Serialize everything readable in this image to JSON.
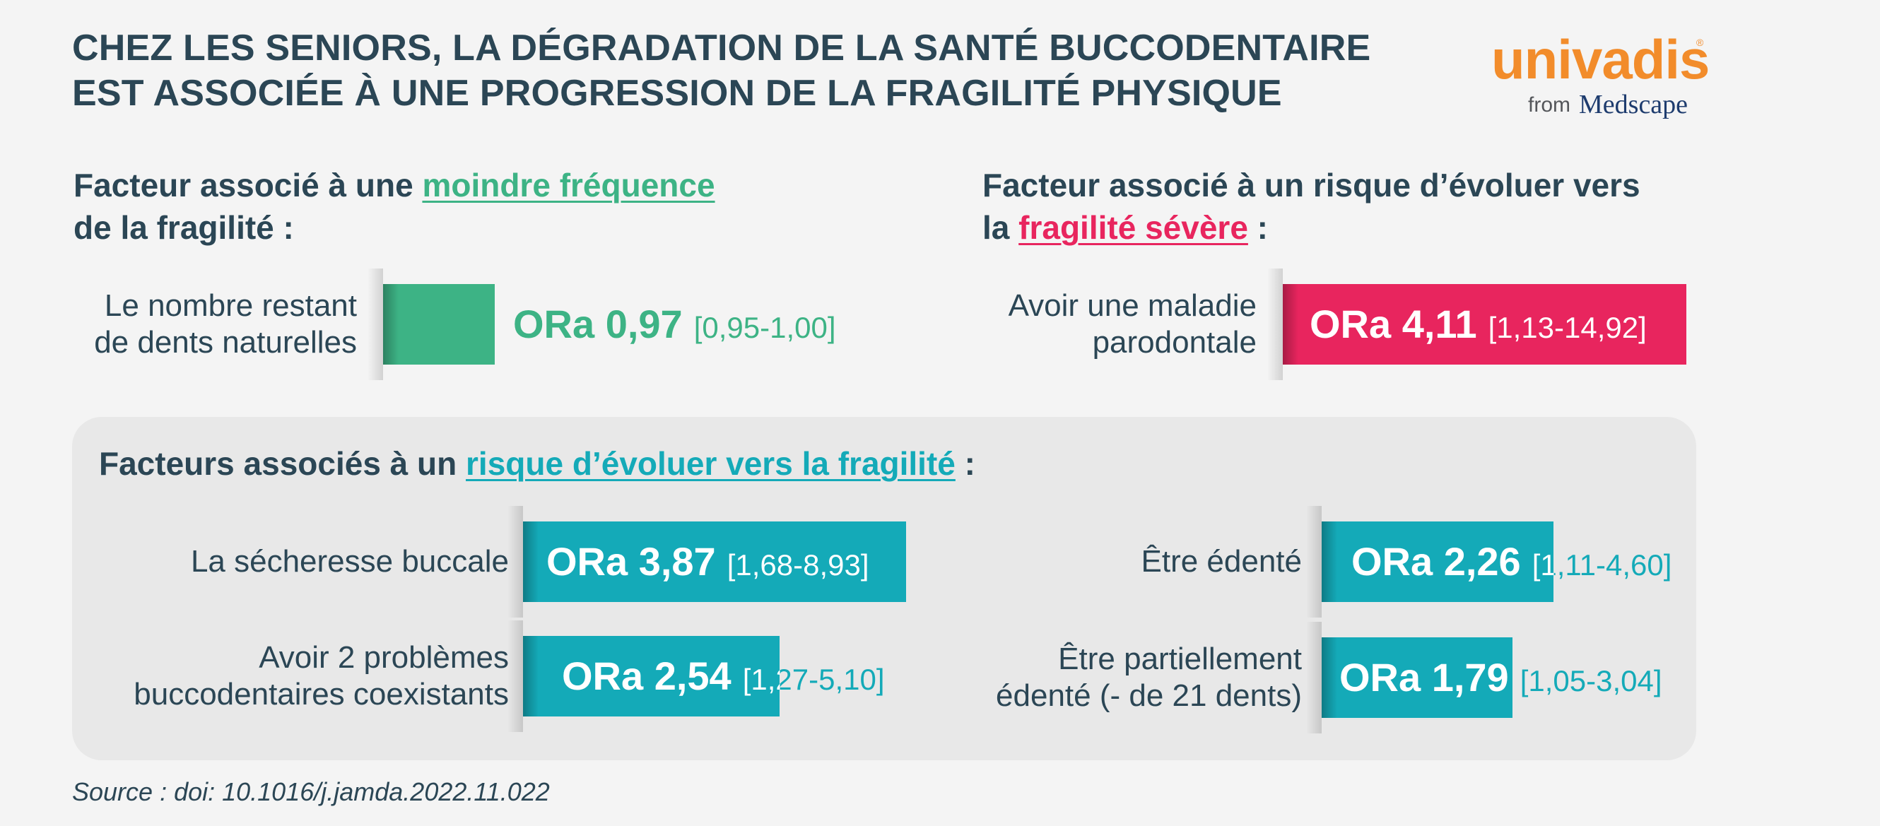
{
  "title": {
    "line1": "CHEZ LES SENIORS, LA DÉGRADATION DE LA SANTÉ BUCCODENTAIRE",
    "line2": "EST ASSOCIÉE À UNE PROGRESSION DE LA FRAGILITÉ PHYSIQUE"
  },
  "logo": {
    "brand": "univadis",
    "registered": "®",
    "from": "from",
    "medscape": "Medscape"
  },
  "colors": {
    "text": "#2b4655",
    "green": "#3db385",
    "pink": "#e8255e",
    "teal": "#14aab8",
    "logo_orange": "#f28c2b"
  },
  "sections": {
    "lower_frequency": {
      "heading_pre": "Facteur associé à une ",
      "heading_hl": "moindre fréquence",
      "heading_post": "de la fragilité :"
    },
    "severe": {
      "heading_pre": "Facteur associé à un risque d’évoluer vers",
      "heading_mid": "la ",
      "heading_hl": "fragilité sévère",
      "heading_post": " :"
    },
    "frailty": {
      "heading_pre": "Facteurs associés à un ",
      "heading_hl": "risque d’évoluer vers la fragilité",
      "heading_post": " :"
    }
  },
  "chart_data": {
    "type": "bar",
    "orientation": "horizontal",
    "metric": "ORa",
    "series": [
      {
        "group": "moindre fréquence de la fragilité",
        "label_lines": [
          "Le nombre restant",
          "de dents naturelles"
        ],
        "or_label": "ORa 0,97",
        "value": 0.97,
        "ci_label": "[0,95-1,00]",
        "ci": [
          0.95,
          1.0
        ],
        "color": "#3db385"
      },
      {
        "group": "fragilité sévère",
        "label_lines": [
          "Avoir une maladie",
          "parodontale"
        ],
        "or_label": "ORa 4,11",
        "value": 4.11,
        "ci_label": "[1,13-14,92]",
        "ci": [
          1.13,
          14.92
        ],
        "color": "#e8255e"
      },
      {
        "group": "risque d’évoluer vers la fragilité",
        "label_lines": [
          "La sécheresse buccale"
        ],
        "or_label": "ORa 3,87",
        "value": 3.87,
        "ci_label": "[1,68-8,93]",
        "ci": [
          1.68,
          8.93
        ],
        "color": "#14aab8"
      },
      {
        "group": "risque d’évoluer vers la fragilité",
        "label_lines": [
          "Avoir 2 problèmes",
          "buccodentaires coexistants"
        ],
        "or_label": "ORa 2,54",
        "value": 2.54,
        "ci_label": "[1,27-5,10]",
        "ci": [
          1.27,
          5.1
        ],
        "color": "#14aab8"
      },
      {
        "group": "risque d’évoluer vers la fragilité",
        "label_lines": [
          "Être édenté"
        ],
        "or_label": "ORa 2,26",
        "value": 2.26,
        "ci_label": "[1,11-4,60]",
        "ci": [
          1.11,
          4.6
        ],
        "color": "#14aab8"
      },
      {
        "group": "risque d’évoluer vers la fragilité",
        "label_lines": [
          "Être partiellement",
          "édenté (- de 21 dents)"
        ],
        "or_label": "ORa 1,79",
        "value": 1.79,
        "ci_label": "[1,05-3,04]",
        "ci": [
          1.05,
          3.04
        ],
        "color": "#14aab8"
      }
    ]
  },
  "source": "Source : doi: 10.1016/j.jamda.2022.11.022"
}
